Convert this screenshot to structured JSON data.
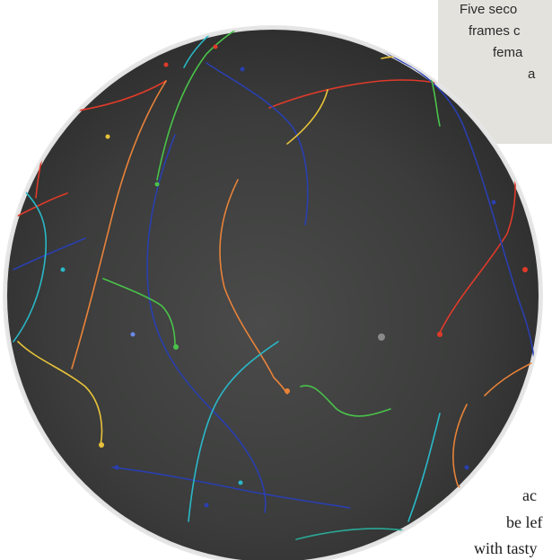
{
  "caption": {
    "background": "#e3e2dd",
    "lines": [
      "Five seco",
      "frames c",
      "fema",
      "a"
    ]
  },
  "body_text": {
    "lines": [
      "ac",
      "be lef",
      "with tasty"
    ]
  },
  "image": {
    "subject": "petri-dish",
    "dish_color": "#3a3b3a",
    "rim_color": "#cfcfcf",
    "track_colors": [
      "#e03a2a",
      "#2a3fb0",
      "#e8a23a",
      "#4ac24a",
      "#2ab8c8",
      "#f0d84a",
      "#e8823a"
    ]
  }
}
